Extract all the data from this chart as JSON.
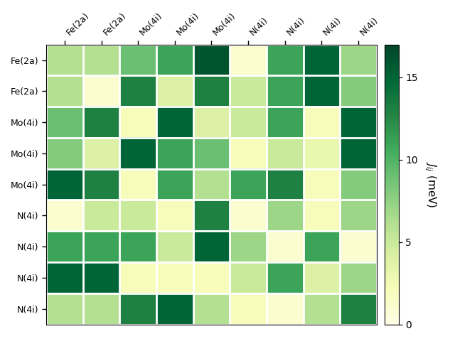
{
  "labels": [
    "Fe(2a)",
    "Fe(2a)",
    "Mo(4i)",
    "Mo(4i)",
    "Mo(4i)",
    "N(4i)",
    "N(4i)",
    "N(4i)",
    "N(4i)"
  ],
  "matrix": [
    [
      6,
      6,
      9,
      11,
      16,
      1,
      11,
      15,
      7
    ],
    [
      6,
      1,
      13,
      4,
      13,
      5,
      11,
      15,
      8
    ],
    [
      9,
      13,
      2,
      15,
      4,
      5,
      11,
      2,
      15
    ],
    [
      8,
      4,
      15,
      11,
      9,
      2,
      5,
      3,
      15
    ],
    [
      15,
      13,
      2,
      11,
      6,
      11,
      13,
      2,
      8
    ],
    [
      1,
      5,
      5,
      2,
      13,
      1,
      7,
      2,
      7
    ],
    [
      11,
      11,
      11,
      5,
      15,
      7,
      1,
      11,
      1
    ],
    [
      15,
      15,
      2,
      2,
      2,
      5,
      11,
      4,
      7
    ],
    [
      6,
      6,
      13,
      15,
      6,
      2,
      1,
      6,
      13
    ]
  ],
  "vmin": 0,
  "vmax": 17,
  "cmap": "YlGn",
  "colorbar_label": "$J_{ij}$ (meV)",
  "colorbar_ticks": [
    0,
    5,
    10,
    15
  ],
  "figsize": [
    6.4,
    4.8
  ],
  "dpi": 100
}
